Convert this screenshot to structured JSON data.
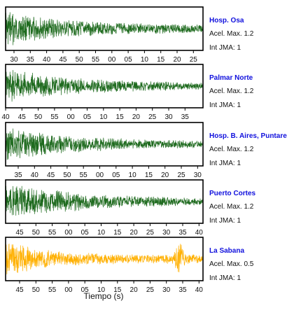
{
  "chart_data": {
    "type": "line",
    "xlabel": "Tiempo (s)",
    "panels": [
      {
        "station": "Hosp. Osa",
        "accel": "Acel. Max. 1.2",
        "intensity": "Int JMA: 1",
        "color": "#1f6b1f",
        "ticks": [
          "30",
          "35",
          "40",
          "45",
          "50",
          "55",
          "00",
          "05",
          "10",
          "15",
          "20",
          "25"
        ],
        "amplitude": [
          [
            0,
            0.95
          ],
          [
            0.1,
            0.7
          ],
          [
            0.3,
            0.45
          ],
          [
            0.6,
            0.3
          ],
          [
            1,
            0.22
          ]
        ]
      },
      {
        "station": "Palmar Norte",
        "accel": "Acel. Max. 1.2",
        "intensity": "Int JMA: 1",
        "color": "#1f6b1f",
        "ticks": [
          "40",
          "45",
          "50",
          "55",
          "00",
          "05",
          "10",
          "15",
          "20",
          "25",
          "30",
          "35"
        ],
        "amplitude": [
          [
            0,
            0.9
          ],
          [
            0.2,
            0.6
          ],
          [
            0.45,
            0.35
          ],
          [
            1,
            0.18
          ]
        ]
      },
      {
        "station": "Hosp. B. Aires, Puntarenas",
        "accel": "Acel. Max. 1.2",
        "intensity": "Int JMA: 1",
        "color": "#1f6b1f",
        "ticks": [
          "35",
          "40",
          "45",
          "50",
          "55",
          "00",
          "05",
          "10",
          "15",
          "20",
          "25",
          "30"
        ],
        "amplitude": [
          [
            0,
            0.9
          ],
          [
            0.1,
            0.75
          ],
          [
            0.3,
            0.45
          ],
          [
            0.7,
            0.25
          ],
          [
            1,
            0.18
          ]
        ]
      },
      {
        "station": "Puerto Cortes",
        "accel": "Acel. Max. 1.2",
        "intensity": "Int JMA: 1",
        "color": "#1f6b1f",
        "ticks": [
          "45",
          "50",
          "55",
          "00",
          "05",
          "10",
          "15",
          "20",
          "25",
          "30",
          "35",
          "40"
        ],
        "amplitude": [
          [
            0,
            0.9
          ],
          [
            0.2,
            0.65
          ],
          [
            0.5,
            0.35
          ],
          [
            1,
            0.18
          ]
        ]
      },
      {
        "station": "La Sabana",
        "accel": "Acel. Max. 0.5",
        "intensity": "Int JMA: 1",
        "color": "#ffb000",
        "ticks": [
          "45",
          "50",
          "55",
          "00",
          "05",
          "10",
          "15",
          "20",
          "25",
          "30",
          "35",
          "40"
        ],
        "amplitude": [
          [
            0,
            0.9
          ],
          [
            0.15,
            0.6
          ],
          [
            0.3,
            0.35
          ],
          [
            0.6,
            0.25
          ],
          [
            0.85,
            0.25
          ],
          [
            0.88,
            0.95
          ],
          [
            0.91,
            0.3
          ],
          [
            1,
            0.22
          ]
        ]
      }
    ]
  }
}
